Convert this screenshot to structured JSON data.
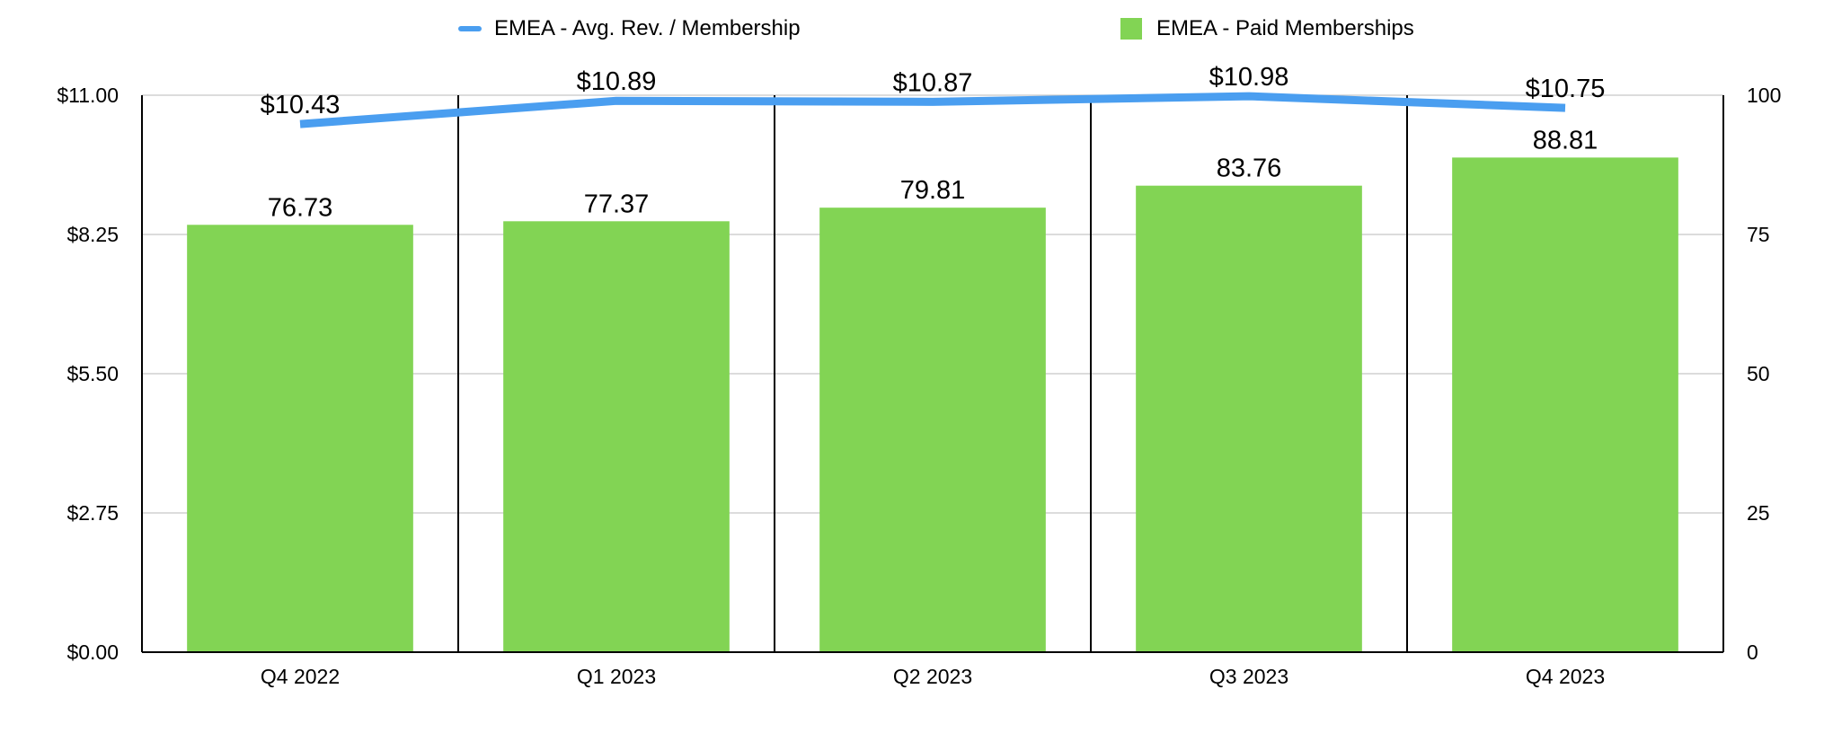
{
  "chart_data": {
    "type": "bar",
    "categories": [
      "Q4 2022",
      "Q1 2023",
      "Q2 2023",
      "Q3 2023",
      "Q4 2023"
    ],
    "series": [
      {
        "name": "EMEA - Paid Memberships",
        "type": "bar",
        "axis": "right",
        "values": [
          76.73,
          77.37,
          79.81,
          83.76,
          88.81
        ],
        "labels": [
          "76.73",
          "77.37",
          "79.81",
          "83.76",
          "88.81"
        ],
        "color": "#82D454"
      },
      {
        "name": "EMEA - Avg. Rev. / Membership",
        "type": "line",
        "axis": "left",
        "values": [
          10.43,
          10.89,
          10.87,
          10.98,
          10.75
        ],
        "labels": [
          "$10.43",
          "$10.89",
          "$10.87",
          "$10.98",
          "$10.75"
        ],
        "color": "#4A9EF0"
      }
    ],
    "y_left": {
      "ylim": [
        0,
        11
      ],
      "ticks": [
        "$0.00",
        "$2.75",
        "$5.50",
        "$8.25",
        "$11.00"
      ]
    },
    "y_right": {
      "ylim": [
        0,
        100
      ],
      "ticks": [
        "0",
        "25",
        "50",
        "75",
        "100"
      ]
    },
    "grid": true,
    "legend_position": "top"
  }
}
